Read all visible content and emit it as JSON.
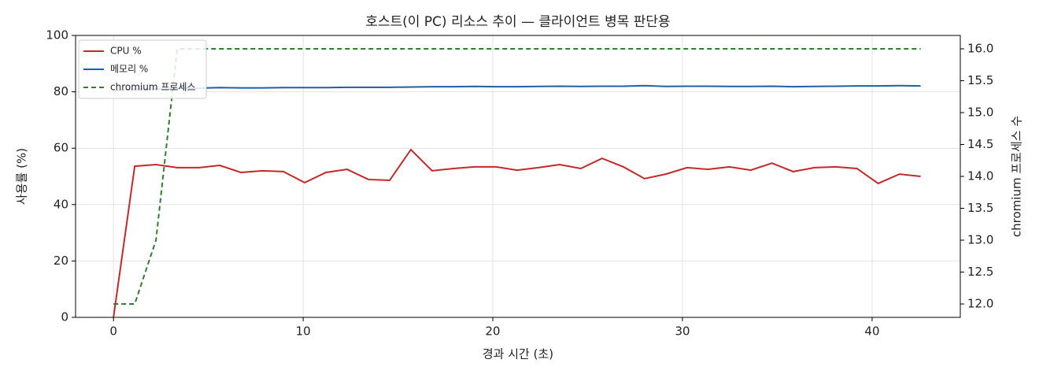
{
  "chart_data": {
    "type": "line",
    "title": "호스트(이 PC) 리소스 추이 — 클라이언트 병목 판단용",
    "x_label": "경과 시간 (초)",
    "y_label": "사용률 (%)",
    "y2_label": "chromium 프로세스 수",
    "x": [
      0,
      1.12,
      2.24,
      3.36,
      4.48,
      5.6,
      6.72,
      7.84,
      8.96,
      10.08,
      11.2,
      12.32,
      13.44,
      14.56,
      15.68,
      16.8,
      17.92,
      19.04,
      20.16,
      21.28,
      22.4,
      23.52,
      24.64,
      25.76,
      26.88,
      28,
      29.12,
      30.24,
      31.36,
      32.48,
      33.6,
      34.72,
      35.84,
      36.96,
      38.08,
      39.2,
      40.32,
      41.44,
      42.56
    ],
    "series": [
      {
        "name": "CPU %",
        "color": "#c62828",
        "dashed": false,
        "values": [
          0,
          53.6,
          54.2,
          53.1,
          53.1,
          53.9,
          51.4,
          52,
          51.7,
          47.8,
          51.4,
          52.5,
          48.9,
          48.6,
          59.5,
          52,
          52.8,
          53.4,
          53.4,
          52.2,
          53.1,
          54.2,
          52.8,
          56.4,
          53.4,
          49.2,
          50.8,
          53.1,
          52.5,
          53.4,
          52.2,
          54.7,
          51.7,
          53.1,
          53.4,
          52.8,
          47.5,
          50.8,
          50
        ]
      },
      {
        "name": "메모리 %",
        "color": "#1f5fa8",
        "dashed": false,
        "values": [
          80.5,
          80.8,
          81,
          81.2,
          81.3,
          81.5,
          81.4,
          81.4,
          81.5,
          81.5,
          81.5,
          81.6,
          81.6,
          81.6,
          81.7,
          81.8,
          81.8,
          81.9,
          81.8,
          81.8,
          81.9,
          82,
          81.9,
          82,
          82,
          82.2,
          81.9,
          82,
          82,
          81.9,
          81.9,
          82,
          81.8,
          81.9,
          82,
          82.1,
          82.1,
          82.2,
          82.1
        ]
      },
      {
        "name": "chromium 프로세스",
        "color": "#2e7d32",
        "dashed": true,
        "axis": "y2",
        "values": [
          12,
          12,
          13,
          16,
          16,
          16,
          16,
          16,
          16,
          16,
          16,
          16,
          16,
          16,
          16,
          16,
          16,
          16,
          16,
          16,
          16,
          16,
          16,
          16,
          16,
          16,
          16,
          16,
          16,
          16,
          16,
          16,
          16,
          16,
          16,
          16,
          16,
          16,
          16
        ]
      }
    ],
    "xlim": [
      -2,
      44.65
    ],
    "xticks": [
      0,
      10,
      20,
      30,
      40
    ],
    "ylim": [
      0,
      100
    ],
    "yticks": [
      0,
      20,
      40,
      60,
      80,
      100
    ],
    "y2lim": [
      11.79,
      16.21
    ],
    "y2ticks": [
      {
        "value": 12,
        "label": "12.0"
      },
      {
        "value": 12.5,
        "label": "12.5"
      },
      {
        "value": 13,
        "label": "13.0"
      },
      {
        "value": 13.5,
        "label": "13.5"
      },
      {
        "value": 14,
        "label": "14.0"
      },
      {
        "value": 14.5,
        "label": "14.5"
      },
      {
        "value": 15,
        "label": "15.0"
      },
      {
        "value": 15.5,
        "label": "15.5"
      },
      {
        "value": 16,
        "label": "16.0"
      }
    ],
    "grid": true,
    "legend": "upper-left"
  }
}
